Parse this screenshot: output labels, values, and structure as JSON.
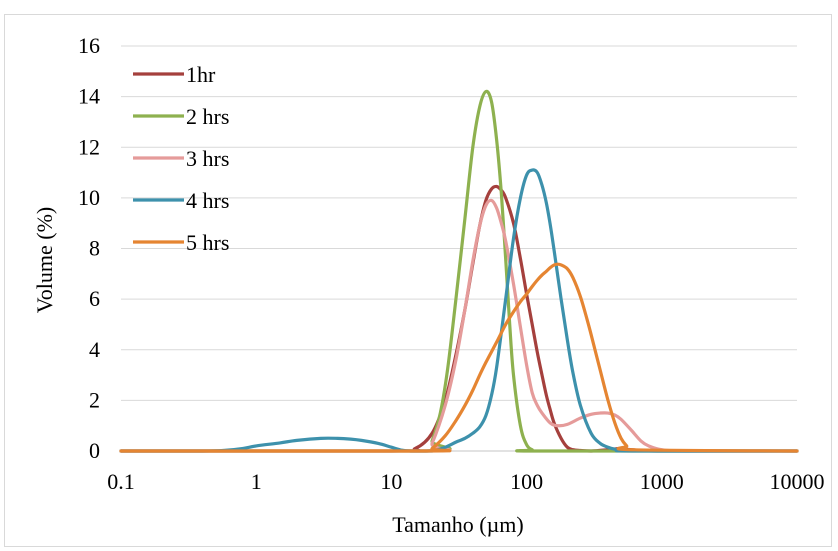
{
  "chart_data": {
    "type": "line",
    "xscale": "log",
    "xlabel": "Tamanho  (µm)",
    "ylabel": "Volume  (%)",
    "xlim": [
      0.1,
      10000
    ],
    "ylim": [
      0,
      16
    ],
    "x_ticks": [
      "0.1",
      "1",
      "10",
      "100",
      "1000",
      "10000"
    ],
    "y_ticks": [
      "0",
      "2",
      "4",
      "6",
      "8",
      "10",
      "12",
      "14",
      "16"
    ],
    "grid": "horizontal",
    "legend_position": "top-left",
    "series": [
      {
        "name": "1hr",
        "color": "#a5403d",
        "x": [
          0.1,
          10,
          15,
          20,
          25,
          30,
          35,
          40,
          45,
          50,
          55,
          60,
          65,
          70,
          80,
          90,
          100,
          110,
          120,
          130,
          140,
          150,
          160,
          180,
          200,
          220,
          250,
          300,
          400,
          500,
          600,
          1000,
          10000
        ],
        "y": [
          0,
          0,
          0.1,
          0.7,
          2.0,
          3.8,
          5.6,
          7.4,
          8.9,
          9.9,
          10.35,
          10.45,
          10.3,
          10.0,
          9.0,
          7.6,
          6.2,
          5.0,
          3.9,
          3.0,
          2.2,
          1.6,
          1.1,
          0.5,
          0.15,
          0.05,
          0.02,
          0,
          0.05,
          0.1,
          0.05,
          0,
          0
        ]
      },
      {
        "name": "2 hrs",
        "color": "#8eb14f",
        "x": [
          0.1,
          18,
          20,
          23,
          26,
          30,
          35,
          40,
          45,
          50,
          55,
          60,
          65,
          70,
          75,
          80,
          90,
          100,
          110,
          120,
          10000
        ],
        "y": [
          0,
          0,
          0.4,
          1.5,
          3.2,
          6.0,
          9.2,
          12.0,
          13.6,
          14.2,
          13.8,
          12.3,
          10.2,
          7.6,
          5.0,
          3.0,
          1.0,
          0.25,
          0.05,
          0,
          0
        ]
      },
      {
        "name": "3 hrs",
        "color": "#e59b9a",
        "x": [
          0.1,
          18,
          20,
          25,
          30,
          35,
          40,
          45,
          50,
          55,
          60,
          65,
          70,
          80,
          90,
          100,
          110,
          120,
          130,
          150,
          170,
          200,
          250,
          300,
          350,
          400,
          450,
          500,
          600,
          700,
          800,
          1000,
          1500,
          10000
        ],
        "y": [
          0,
          0,
          0.3,
          1.8,
          3.6,
          5.6,
          7.5,
          8.9,
          9.7,
          9.9,
          9.6,
          9.0,
          8.3,
          6.6,
          4.9,
          3.4,
          2.3,
          1.8,
          1.5,
          1.1,
          1.0,
          1.05,
          1.3,
          1.45,
          1.5,
          1.5,
          1.42,
          1.25,
          0.8,
          0.4,
          0.2,
          0.05,
          0,
          0
        ]
      },
      {
        "name": "4 hrs",
        "color": "#3d91ac",
        "x": [
          0.1,
          0.4,
          0.6,
          0.8,
          1,
          1.5,
          2,
          3,
          4,
          5,
          6,
          8,
          10,
          12,
          14,
          20,
          25,
          30,
          35,
          40,
          45,
          50,
          55,
          60,
          70,
          80,
          90,
          100,
          110,
          120,
          130,
          140,
          150,
          160,
          180,
          200,
          220,
          250,
          300,
          350,
          400,
          450,
          500,
          600,
          10000
        ],
        "y": [
          0,
          0,
          0.03,
          0.1,
          0.2,
          0.32,
          0.42,
          0.5,
          0.5,
          0.47,
          0.42,
          0.3,
          0.15,
          0.03,
          0,
          0,
          0.15,
          0.35,
          0.5,
          0.7,
          0.95,
          1.4,
          2.2,
          3.3,
          6.0,
          8.4,
          10.0,
          10.9,
          11.1,
          11.0,
          10.5,
          9.8,
          8.9,
          7.9,
          6.0,
          4.4,
          3.1,
          1.8,
          0.7,
          0.3,
          0.15,
          0.07,
          0.03,
          0,
          0
        ]
      },
      {
        "name": "5 hrs",
        "color": "#e58532",
        "x": [
          0.1,
          18,
          20,
          25,
          30,
          35,
          40,
          45,
          50,
          60,
          70,
          80,
          90,
          100,
          110,
          120,
          130,
          140,
          150,
          160,
          170,
          180,
          200,
          220,
          250,
          280,
          300,
          350,
          400,
          450,
          500,
          550,
          600,
          10000
        ],
        "y": [
          0,
          0,
          0.1,
          0.6,
          1.2,
          1.8,
          2.4,
          3.0,
          3.5,
          4.3,
          5.0,
          5.5,
          5.9,
          6.2,
          6.5,
          6.75,
          6.95,
          7.1,
          7.25,
          7.35,
          7.38,
          7.35,
          7.2,
          6.85,
          6.1,
          5.2,
          4.6,
          3.2,
          2.0,
          1.1,
          0.5,
          0.2,
          0.05,
          0
        ]
      }
    ]
  }
}
